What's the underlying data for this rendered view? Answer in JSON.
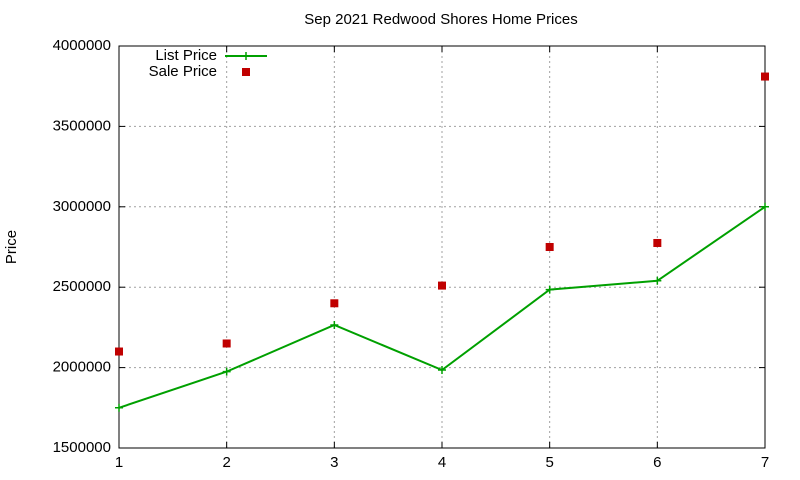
{
  "chart_data": {
    "type": "line",
    "title": "Sep 2021 Redwood Shores Home Prices",
    "y_label": "Price",
    "x": [
      1,
      2,
      3,
      4,
      5,
      6,
      7
    ],
    "series": [
      {
        "name": "List Price",
        "color": "#00a000",
        "style": "linespoints",
        "values": [
          1750000,
          1975000,
          2265000,
          1985000,
          2485000,
          2540000,
          3000000
        ]
      },
      {
        "name": "Sale Price",
        "color": "#c00000",
        "style": "points",
        "values": [
          2100000,
          2150000,
          2400000,
          2510000,
          2750000,
          2775000,
          3810000
        ]
      }
    ],
    "xlim": [
      1,
      7
    ],
    "xticks": [
      1,
      2,
      3,
      4,
      5,
      6,
      7
    ],
    "ylim": [
      1500000,
      4000000
    ],
    "yticks": [
      1500000,
      2000000,
      2500000,
      3000000,
      3500000,
      4000000
    ],
    "grid": true,
    "legend": "top-left"
  }
}
